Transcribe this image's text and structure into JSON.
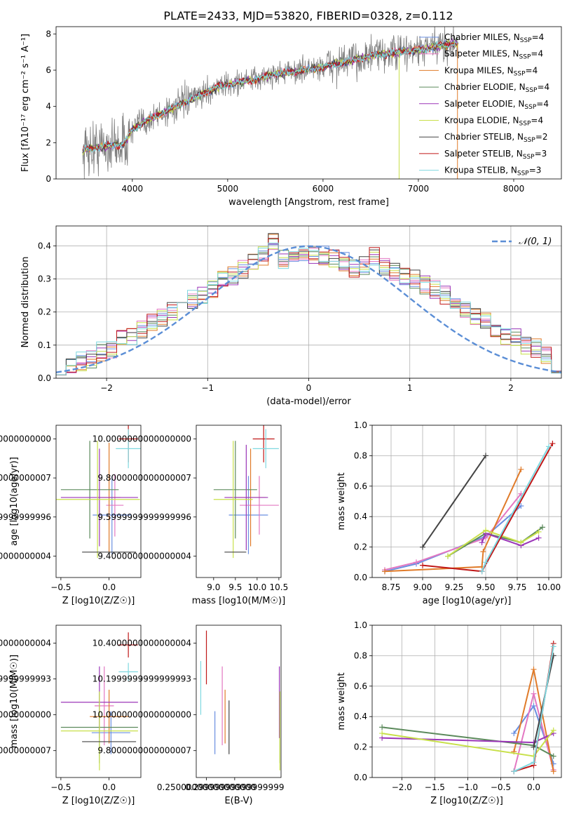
{
  "figure_title": "PLATE=2433, MJD=53820, FIBERID=0328, z=0.112",
  "colors": {
    "Chabrier MILES": "#6a8fe0",
    "Salpeter MILES": "#e377c2",
    "Kroupa MILES": "#e07b2a",
    "Chabrier ELODIE": "#5c8a5c",
    "Salpeter ELODIE": "#9b36b8",
    "Kroupa ELODIE": "#c8e04a",
    "Chabrier STELIB": "#444444",
    "Salpeter STELIB": "#c01818",
    "Kroupa STELIB": "#7fd8e0",
    "data": "#7f7f7f",
    "normal": "#5b8ed6"
  },
  "chart_data": [
    {
      "id": "spectrum",
      "type": "line",
      "xlabel": "wavelength [Angstrom, rest frame]",
      "ylabel": "Flux [fλ10⁻¹⁷ erg cm⁻² s⁻¹ A⁻¹]",
      "xlim": [
        3200,
        8500
      ],
      "ylim": [
        0,
        8.4
      ],
      "xticks": [
        4000,
        5000,
        6000,
        7000,
        8000
      ],
      "yticks": [
        0,
        2,
        4,
        6,
        8
      ],
      "legend_position": "top-right",
      "model_knots": {
        "x": [
          3500,
          3700,
          3900,
          4000,
          4100,
          4300,
          4500,
          4700,
          4900,
          5100,
          5300,
          5500,
          5800,
          6000,
          6200,
          6500,
          6800,
          7000,
          7200,
          7400
        ],
        "y": [
          1.6,
          1.8,
          1.9,
          2.7,
          3.1,
          3.6,
          4.1,
          4.6,
          5.1,
          5.3,
          5.5,
          5.8,
          6.0,
          6.2,
          6.4,
          6.8,
          7.0,
          7.1,
          7.3,
          7.5
        ]
      },
      "data_range": [
        3480,
        7420
      ],
      "series": [
        {
          "name": "Chabrier MILES, N_SSP=4"
        },
        {
          "name": "Salpeter MILES, N_SSP=4"
        },
        {
          "name": "Kroupa MILES, N_SSP=4"
        },
        {
          "name": "Chabrier ELODIE, N_SSP=4"
        },
        {
          "name": "Salpeter ELODIE, N_SSP=4"
        },
        {
          "name": "Kroupa ELODIE, N_SSP=4"
        },
        {
          "name": "Chabrier STELIB, N_SSP=2"
        },
        {
          "name": "Salpeter STELIB, N_SSP=3"
        },
        {
          "name": "Kroupa STELIB, N_SSP=3"
        }
      ]
    },
    {
      "id": "residuals",
      "type": "bar",
      "xlabel": "(data-model)/error",
      "ylabel": "Normed distribution",
      "xlim": [
        -2.5,
        2.5
      ],
      "ylim": [
        0,
        0.46
      ],
      "xticks": [
        -2,
        -1,
        0,
        1,
        2
      ],
      "yticks": [
        0.0,
        0.1,
        0.2,
        0.3,
        0.4
      ],
      "grid": true,
      "legend": "𝒩(0, 1)",
      "legend_position": "top-right",
      "bin_width": 0.1,
      "x_start": -2.5,
      "bin_values": [
        0.04,
        0.04,
        0.05,
        0.06,
        0.08,
        0.09,
        0.12,
        0.13,
        0.15,
        0.17,
        0.18,
        0.2,
        0.23,
        0.24,
        0.25,
        0.27,
        0.3,
        0.31,
        0.33,
        0.35,
        0.37,
        0.41,
        0.36,
        0.37,
        0.38,
        0.37,
        0.37,
        0.36,
        0.35,
        0.33,
        0.34,
        0.37,
        0.34,
        0.32,
        0.31,
        0.3,
        0.28,
        0.27,
        0.25,
        0.23,
        0.21,
        0.19,
        0.17,
        0.15,
        0.13,
        0.12,
        0.1,
        0.09,
        0.07,
        0.04
      ]
    },
    {
      "id": "age-vs-Z",
      "type": "scatter",
      "xlabel": "Z [log10(Z/Z☉)]",
      "ylabel": "age  [log10(age/yr)]",
      "xlim": [
        -0.55,
        0.33
      ],
      "ylim": [
        9.29,
        10.07
      ],
      "xticks": [
        -0.5,
        0.0
      ],
      "yticks": [
        9.4,
        9.6,
        9.8,
        10.0
      ],
      "points": [
        {
          "s": "Chabrier MILES",
          "x": 0.03,
          "y": 9.61,
          "xerr": 0.2,
          "yerr": 0.2
        },
        {
          "s": "Salpeter MILES",
          "x": 0.06,
          "y": 9.66,
          "xerr": 0.09,
          "yerr": 0.16
        },
        {
          "s": "Kroupa MILES",
          "x": 0.0,
          "y": 9.7,
          "xerr": 0.12,
          "yerr": 0.28
        },
        {
          "s": "Chabrier ELODIE",
          "x": -0.2,
          "y": 9.74,
          "xerr": 0.3,
          "yerr": 0.25
        },
        {
          "s": "Salpeter ELODIE",
          "x": -0.1,
          "y": 9.7,
          "xerr": 0.4,
          "yerr": 0.25
        },
        {
          "s": "Kroupa ELODIE",
          "x": -0.12,
          "y": 9.69,
          "xerr": 0.44,
          "yerr": 0.3
        },
        {
          "s": "Chabrier STELIB",
          "x": 0.0,
          "y": 9.42,
          "xerr": 0.28,
          "yerr": 0.0
        },
        {
          "s": "Salpeter STELIB",
          "x": 0.2,
          "y": 10.0,
          "xerr": 0.1,
          "yerr": 0.12
        },
        {
          "s": "Kroupa STELIB",
          "x": 0.2,
          "y": 9.95,
          "xerr": 0.13,
          "yerr": 0.1
        }
      ]
    },
    {
      "id": "age-vs-mass",
      "type": "scatter",
      "xlabel": "mass [log10(M/M☉)]",
      "ylabel": "",
      "xlim": [
        8.6,
        10.55
      ],
      "ylim": [
        9.29,
        10.07
      ],
      "xticks": [
        9.0,
        9.5,
        10.0,
        10.5
      ],
      "yticks": [
        9.4,
        9.6,
        9.8,
        10.0
      ],
      "points": [
        {
          "s": "Chabrier MILES",
          "x": 9.8,
          "y": 9.61,
          "xerr": 0.45,
          "yerr": 0.2
        },
        {
          "s": "Salpeter MILES",
          "x": 10.05,
          "y": 9.66,
          "xerr": 0.45,
          "yerr": 0.15
        },
        {
          "s": "Kroupa MILES",
          "x": 9.85,
          "y": 9.7,
          "xerr": 0.35,
          "yerr": 0.25
        },
        {
          "s": "Chabrier ELODIE",
          "x": 9.5,
          "y": 9.74,
          "xerr": 0.5,
          "yerr": 0.25
        },
        {
          "s": "Salpeter ELODIE",
          "x": 9.75,
          "y": 9.7,
          "xerr": 0.5,
          "yerr": 0.27
        },
        {
          "s": "Kroupa ELODIE",
          "x": 9.45,
          "y": 9.69,
          "xerr": 0.45,
          "yerr": 0.3
        },
        {
          "s": "Chabrier STELIB",
          "x": 9.5,
          "y": 9.42,
          "xerr": 0.25,
          "yerr": 0.0
        },
        {
          "s": "Salpeter STELIB",
          "x": 10.15,
          "y": 10.0,
          "xerr": 0.25,
          "yerr": 0.12
        },
        {
          "s": "Kroupa STELIB",
          "x": 10.2,
          "y": 9.95,
          "xerr": 0.3,
          "yerr": 0.1
        }
      ]
    },
    {
      "id": "mass-weight-vs-age",
      "type": "line",
      "xlabel": "age  [log10(age/yr)]",
      "ylabel": "mass weight",
      "xlim": [
        8.6,
        10.1
      ],
      "ylim": [
        0,
        1.0
      ],
      "xticks": [
        8.75,
        9.0,
        9.25,
        9.5,
        9.75,
        10.0
      ],
      "yticks": [
        0.0,
        0.2,
        0.4,
        0.6,
        0.8,
        1.0
      ],
      "grid": true,
      "series": [
        {
          "name": "Chabrier MILES",
          "x": [
            8.7,
            8.95,
            9.5,
            9.78
          ],
          "y": [
            0.04,
            0.09,
            0.27,
            0.47
          ]
        },
        {
          "name": "Salpeter MILES",
          "x": [
            8.7,
            8.95,
            9.5,
            9.78
          ],
          "y": [
            0.05,
            0.1,
            0.26,
            0.55
          ]
        },
        {
          "name": "Kroupa MILES",
          "x": [
            8.7,
            9.47,
            9.48,
            9.78
          ],
          "y": [
            0.04,
            0.07,
            0.17,
            0.71
          ]
        },
        {
          "name": "Chabrier ELODIE",
          "x": [
            9.2,
            9.5,
            9.78,
            9.95
          ],
          "y": [
            0.14,
            0.29,
            0.23,
            0.33
          ]
        },
        {
          "name": "Salpeter ELODIE",
          "x": [
            9.47,
            9.5,
            9.78,
            9.92
          ],
          "y": [
            0.23,
            0.29,
            0.21,
            0.26
          ]
        },
        {
          "name": "Kroupa ELODIE",
          "x": [
            9.2,
            9.5,
            9.78,
            9.92
          ],
          "y": [
            0.14,
            0.31,
            0.23,
            0.3
          ]
        },
        {
          "name": "Chabrier STELIB",
          "x": [
            9.0,
            9.5
          ],
          "y": [
            0.2,
            0.8
          ]
        },
        {
          "name": "Salpeter STELIB",
          "x": [
            9.0,
            9.47,
            10.03
          ],
          "y": [
            0.08,
            0.04,
            0.88
          ]
        },
        {
          "name": "Kroupa STELIB",
          "x": [
            9.47,
            9.5,
            10.0
          ],
          "y": [
            0.04,
            0.1,
            0.86
          ]
        }
      ]
    },
    {
      "id": "mass-vs-Z",
      "type": "scatter",
      "xlabel": "Z [log10(Z/Z☉)]",
      "ylabel": "mass [log10(M/M☉)]",
      "xlim": [
        -0.55,
        0.33
      ],
      "ylim": [
        9.65,
        10.5
      ],
      "xticks": [
        -0.5,
        0.0
      ],
      "yticks": [
        9.8,
        10.0,
        10.2,
        10.4
      ],
      "points": [
        {
          "s": "Chabrier MILES",
          "x": 0.02,
          "y": 9.9,
          "xerr": 0.2,
          "yerr": 0.12
        },
        {
          "s": "Salpeter MILES",
          "x": -0.05,
          "y": 10.05,
          "xerr": 0.1,
          "yerr": 0.22
        },
        {
          "s": "Kroupa MILES",
          "x": 0.0,
          "y": 9.99,
          "xerr": 0.2,
          "yerr": 0.15
        },
        {
          "s": "Chabrier ELODIE",
          "x": -0.1,
          "y": 9.93,
          "xerr": 0.4,
          "yerr": 0.2
        },
        {
          "s": "Salpeter ELODIE",
          "x": -0.1,
          "y": 10.07,
          "xerr": 0.4,
          "yerr": 0.2
        },
        {
          "s": "Kroupa ELODIE",
          "x": -0.1,
          "y": 9.91,
          "xerr": 0.4,
          "yerr": 0.22
        },
        {
          "s": "Chabrier STELIB",
          "x": 0.0,
          "y": 9.85,
          "xerr": 0.28,
          "yerr": 0.0
        },
        {
          "s": "Salpeter STELIB",
          "x": 0.2,
          "y": 10.39,
          "xerr": 0.1,
          "yerr": 0.07
        },
        {
          "s": "Kroupa STELIB",
          "x": 0.2,
          "y": 10.24,
          "xerr": 0.1,
          "yerr": 0.05
        }
      ]
    },
    {
      "id": "mass-vs-EBV",
      "type": "scatter",
      "xlabel": "E(B-V)",
      "ylabel": "",
      "xlim": [
        0.232,
        0.382
      ],
      "ylim": [
        9.65,
        10.5
      ],
      "xticks": [
        0.25,
        0.3
      ],
      "yticks": [
        9.8,
        10.0,
        10.2,
        10.4
      ],
      "points": [
        {
          "s": "Chabrier MILES",
          "x": 0.265,
          "y": 9.9,
          "xerr": 0.0,
          "yerr": 0.12
        },
        {
          "s": "Salpeter MILES",
          "x": 0.278,
          "y": 10.05,
          "xerr": 0.0,
          "yerr": 0.22
        },
        {
          "s": "Kroupa MILES",
          "x": 0.283,
          "y": 9.99,
          "xerr": 0.0,
          "yerr": 0.15
        },
        {
          "s": "Chabrier ELODIE",
          "x": 0.38,
          "y": 9.93,
          "xerr": 0.0,
          "yerr": 0.2
        },
        {
          "s": "Salpeter ELODIE",
          "x": 0.379,
          "y": 10.07,
          "xerr": 0.0,
          "yerr": 0.2
        },
        {
          "s": "Kroupa ELODIE",
          "x": 0.38,
          "y": 9.91,
          "xerr": 0.0,
          "yerr": 0.22
        },
        {
          "s": "Chabrier STELIB",
          "x": 0.29,
          "y": 9.93,
          "xerr": 0.0,
          "yerr": 0.15
        },
        {
          "s": "Salpeter STELIB",
          "x": 0.25,
          "y": 10.32,
          "xerr": 0.0,
          "yerr": 0.15
        },
        {
          "s": "Kroupa STELIB",
          "x": 0.24,
          "y": 10.15,
          "xerr": 0.0,
          "yerr": 0.15
        }
      ]
    },
    {
      "id": "mass-weight-vs-Z",
      "type": "line",
      "xlabel": "Z [log10(Z/Z☉)]",
      "ylabel": "mass weight",
      "xlim": [
        -2.45,
        0.42
      ],
      "ylim": [
        0,
        1.0
      ],
      "xticks": [
        -2.0,
        -1.5,
        -1.0,
        -0.5,
        0.0
      ],
      "yticks": [
        0.0,
        0.2,
        0.4,
        0.6,
        0.8,
        1.0
      ],
      "grid": true,
      "series": [
        {
          "name": "Chabrier MILES",
          "x": [
            -0.3,
            0.0,
            0.3
          ],
          "y": [
            0.29,
            0.47,
            0.09
          ]
        },
        {
          "name": "Salpeter MILES",
          "x": [
            -0.3,
            0.0,
            0.3
          ],
          "y": [
            0.04,
            0.55,
            0.05
          ]
        },
        {
          "name": "Kroupa MILES",
          "x": [
            -0.3,
            0.0,
            0.3
          ],
          "y": [
            0.17,
            0.71,
            0.04
          ]
        },
        {
          "name": "Chabrier ELODIE",
          "x": [
            -2.3,
            0.0,
            0.3
          ],
          "y": [
            0.33,
            0.21,
            0.14
          ]
        },
        {
          "name": "Salpeter ELODIE",
          "x": [
            -2.3,
            0.0,
            0.3
          ],
          "y": [
            0.26,
            0.23,
            0.29
          ]
        },
        {
          "name": "Kroupa ELODIE",
          "x": [
            -2.3,
            0.0,
            0.3
          ],
          "y": [
            0.29,
            0.14,
            0.31
          ]
        },
        {
          "name": "Chabrier STELIB",
          "x": [
            0.0,
            0.3
          ],
          "y": [
            0.2,
            0.8
          ]
        },
        {
          "name": "Salpeter STELIB",
          "x": [
            -0.3,
            0.0,
            0.3
          ],
          "y": [
            0.04,
            0.08,
            0.88
          ]
        },
        {
          "name": "Kroupa STELIB",
          "x": [
            -0.3,
            0.0,
            0.3
          ],
          "y": [
            0.04,
            0.1,
            0.86
          ]
        }
      ]
    }
  ]
}
